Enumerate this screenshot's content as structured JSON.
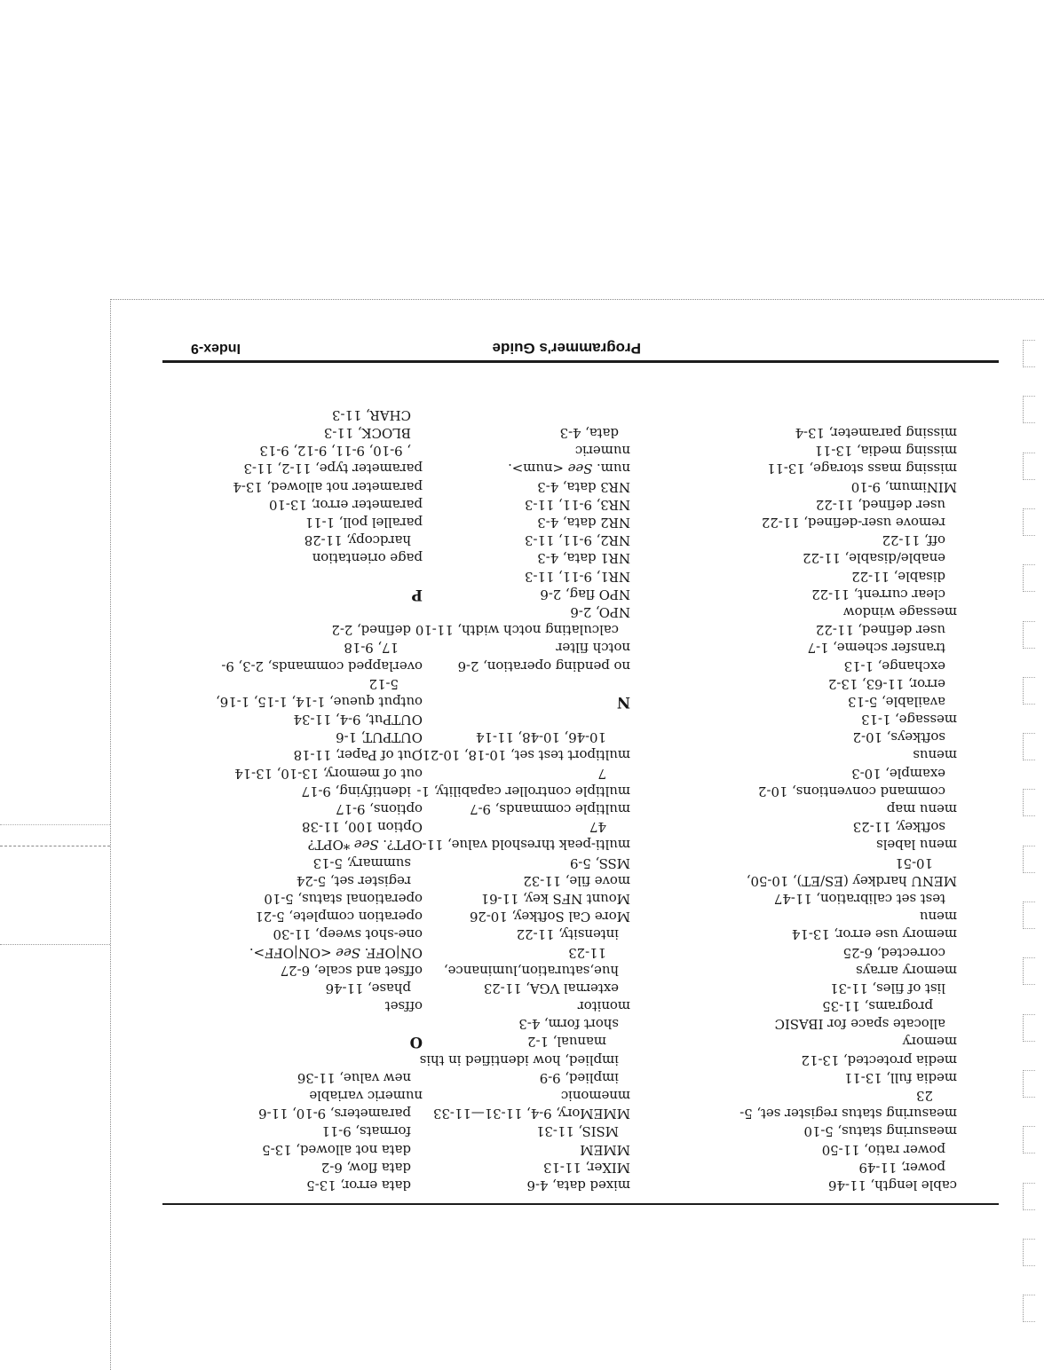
{
  "footer": {
    "doc_title": "Programmer's Guide",
    "page_label": "Index-9"
  },
  "index": {
    "columns": [
      {
        "lines": [
          {
            "t": "cable length, 11-46",
            "i": 0
          },
          {
            "t": "power, 11-49",
            "i": 1
          },
          {
            "t": "power ratio, 11-50",
            "i": 1
          },
          {
            "t": "measuring status, 5-10",
            "i": 0
          },
          {
            "t": "measuring status register set, 5-",
            "i": 0
          },
          {
            "t": "23",
            "i": 2
          },
          {
            "t": "media full, 13-11",
            "i": 0
          },
          {
            "t": "media protected, 13-12",
            "i": 0
          },
          {
            "t": "memory",
            "i": 0
          },
          {
            "t": "allocate space for IBASIC",
            "i": 1
          },
          {
            "t": "programs, 11-35",
            "i": 2
          },
          {
            "t": "list of files, 11-31",
            "i": 1
          },
          {
            "t": "memory arrays",
            "i": 0
          },
          {
            "t": "corrected, 6-25",
            "i": 1
          },
          {
            "t": "memory use error, 13-14",
            "i": 0
          },
          {
            "t": "menu",
            "i": 0
          },
          {
            "t": "test set calibration, 11-47",
            "i": 1
          },
          {
            "t": "MENU hardkey (ES/ET), 10-50,",
            "i": 0
          },
          {
            "t": "10-51",
            "i": 2
          },
          {
            "t": "menu labels",
            "i": 0
          },
          {
            "t": "softkey, 11-23",
            "i": 1
          },
          {
            "t": "menu map",
            "i": 0
          },
          {
            "t": "command conventions, 10-2",
            "i": 1
          },
          {
            "t": "example, 10-3",
            "i": 1
          },
          {
            "t": "menus",
            "i": 0
          },
          {
            "t": "softkeys, 10-2",
            "i": 1
          },
          {
            "t": "message, 1-13",
            "i": 0
          },
          {
            "t": "available, 5-13",
            "i": 1
          },
          {
            "t": "error, 11-63, 13-2",
            "i": 1
          },
          {
            "t": "exchange, 1-13",
            "i": 1
          },
          {
            "t": "transfer scheme, 1-7",
            "i": 1
          },
          {
            "t": "user defined, 11-22",
            "i": 1
          },
          {
            "t": "message window",
            "i": 0
          },
          {
            "t": "clear current, 11-22",
            "i": 1
          },
          {
            "t": "disable, 11-22",
            "i": 1
          },
          {
            "t": "enable/disable, 11-22",
            "i": 1
          },
          {
            "t": "off, 11-22",
            "i": 1
          },
          {
            "t": "remove user-defined, 11-22",
            "i": 1
          },
          {
            "t": "user defined, 11-22",
            "i": 1
          },
          {
            "t": "MINimum, 9-10",
            "i": 0
          },
          {
            "t": "missing mass storage, 13-11",
            "i": 0
          },
          {
            "t": "missing media, 13-11",
            "i": 0
          },
          {
            "t": "missing parameter, 13-4",
            "i": 0
          }
        ]
      },
      {
        "lines": [
          {
            "t": "mixed data, 4-6",
            "i": 0
          },
          {
            "t": "MIXer, 11-13",
            "i": 0
          },
          {
            "t": "MMEM",
            "i": 0
          },
          {
            "t": "MSIS, 11-31",
            "i": 1
          },
          {
            "t": "MMEMory, 9-4, 11-31—11-33",
            "i": 0
          },
          {
            "t": "mnemonic",
            "i": 0
          },
          {
            "t": "implied, 9-9",
            "i": 1
          },
          {
            "t": "implied, how identified in this",
            "i": 1
          },
          {
            "t": "manual, 1-2",
            "i": 2
          },
          {
            "t": "short form, 4-3",
            "i": 1
          },
          {
            "t": "monitor",
            "i": 0
          },
          {
            "t": "external VGA, 11-23",
            "i": 1
          },
          {
            "t": "hue,saturation,luminance,",
            "i": 1
          },
          {
            "t": "11-23",
            "i": 2
          },
          {
            "t": "intensity, 11-22",
            "i": 1
          },
          {
            "t": "More Cal Softkey, 10-26",
            "i": 0
          },
          {
            "t": "Mount NFS key, 11-61",
            "i": 0
          },
          {
            "t": "move file, 11-32",
            "i": 0
          },
          {
            "t": "MSS, 5-9",
            "i": 0
          },
          {
            "t": "multi-peak threshold value, 11-",
            "i": 0
          },
          {
            "t": "47",
            "i": 2
          },
          {
            "t": "multiple commands, 9-7",
            "i": 0
          },
          {
            "t": "multiple controller capability, 1-",
            "i": 0
          },
          {
            "t": "7",
            "i": 2
          },
          {
            "t": "multiport test set, 10-18, 10-21,",
            "i": 0
          },
          {
            "t": "10-46, 10-48, 11-14",
            "i": 2
          },
          {
            "blank": true
          },
          {
            "heading": "N"
          },
          {
            "blank": true
          },
          {
            "t": "no pending operation, 2-6",
            "i": 0
          },
          {
            "t": "notch filter",
            "i": 0
          },
          {
            "t": "calculating notch width, 11-10",
            "i": 1
          },
          {
            "t": "NPO, 2-6",
            "i": 0
          },
          {
            "t": "NPO flag, 2-6",
            "i": 0
          },
          {
            "t": "NR1, 9-11, 11-3",
            "i": 0
          },
          {
            "t": "NR1 data, 4-3",
            "i": 0
          },
          {
            "t": "NR2, 9-11, 11-3",
            "i": 0
          },
          {
            "t": "NR2 data, 4-3",
            "i": 0
          },
          {
            "t": "NR3, 9-11, 11-3",
            "i": 0
          },
          {
            "t": "NR3 data, 4-3",
            "i": 0
          },
          {
            "parts": [
              {
                "t": "num. "
              },
              {
                "t": "See",
                "it": true
              },
              {
                "t": " <num>."
              }
            ],
            "i": 0
          },
          {
            "t": "numeric",
            "i": 0
          },
          {
            "t": "data, 4-3",
            "i": 1
          }
        ]
      },
      {
        "lines": [
          {
            "t": "data error, 13-5",
            "i": 1
          },
          {
            "t": "data flow, 6-2",
            "i": 1
          },
          {
            "t": "data not allowed, 13-5",
            "i": 1
          },
          {
            "t": "formats, 9-11",
            "i": 1
          },
          {
            "t": "parameters, 9-10, 11-6",
            "i": 1
          },
          {
            "t": "numeric variable",
            "i": 0
          },
          {
            "t": "new value, 11-36",
            "i": 1
          },
          {
            "blank": true
          },
          {
            "heading": "O"
          },
          {
            "blank": true
          },
          {
            "t": "offset",
            "i": 0
          },
          {
            "t": "phase, 11-46",
            "i": 1
          },
          {
            "t": "offset and scale, 6-27",
            "i": 0
          },
          {
            "parts": [
              {
                "t": "ON|OFF. "
              },
              {
                "t": "See",
                "it": true
              },
              {
                "t": " <ON|OFF>."
              }
            ],
            "i": 0
          },
          {
            "t": "one-shot sweep, 11-30",
            "i": 0
          },
          {
            "t": "operation complete, 5-21",
            "i": 0
          },
          {
            "t": "operational status, 5-10",
            "i": 0
          },
          {
            "t": "register set, 5-24",
            "i": 1
          },
          {
            "t": "summary, 5-13",
            "i": 1
          },
          {
            "parts": [
              {
                "t": "OPT?. "
              },
              {
                "t": "See",
                "it": true
              },
              {
                "t": " *OPT?"
              }
            ],
            "i": 0
          },
          {
            "t": "Option 100, 11-38",
            "i": 0
          },
          {
            "t": "options, 9-17",
            "i": 0
          },
          {
            "t": "identifying, 9-17",
            "i": 1
          },
          {
            "t": "out of memory, 13-10, 13-14",
            "i": 0
          },
          {
            "t": "Out of Paper, 11-18",
            "i": 0
          },
          {
            "t": "OUTPUT, 1-6",
            "i": 0
          },
          {
            "t": "OUTPut, 9-4, 11-34",
            "i": 0
          },
          {
            "t": "output queue, 1-14, 1-15, 1-16,",
            "i": 0
          },
          {
            "t": "5-12",
            "i": 2
          },
          {
            "t": "overlapped commands, 2-3, 9-",
            "i": 0
          },
          {
            "t": "17, 9-18",
            "i": 2
          },
          {
            "t": "defined, 2-2",
            "i": 1
          },
          {
            "blank": true
          },
          {
            "heading": "P"
          },
          {
            "blank": true
          },
          {
            "t": "page orientation",
            "i": 0
          },
          {
            "t": "hardcopy, 11-28",
            "i": 1
          },
          {
            "t": "parallel poll, 1-11",
            "i": 0
          },
          {
            "t": "parameter error, 13-10",
            "i": 0
          },
          {
            "t": "parameter not allowed, 13-4",
            "i": 0
          },
          {
            "t": "parameter type, 11-2, 11-3",
            "i": 0
          },
          {
            "t": ", 9-10, 9-11, 9-12, 9-13",
            "i": 1
          },
          {
            "t": "BLOCK, 11-3",
            "i": 1
          },
          {
            "t": "CHAR, 11-3",
            "i": 1
          }
        ]
      }
    ]
  }
}
